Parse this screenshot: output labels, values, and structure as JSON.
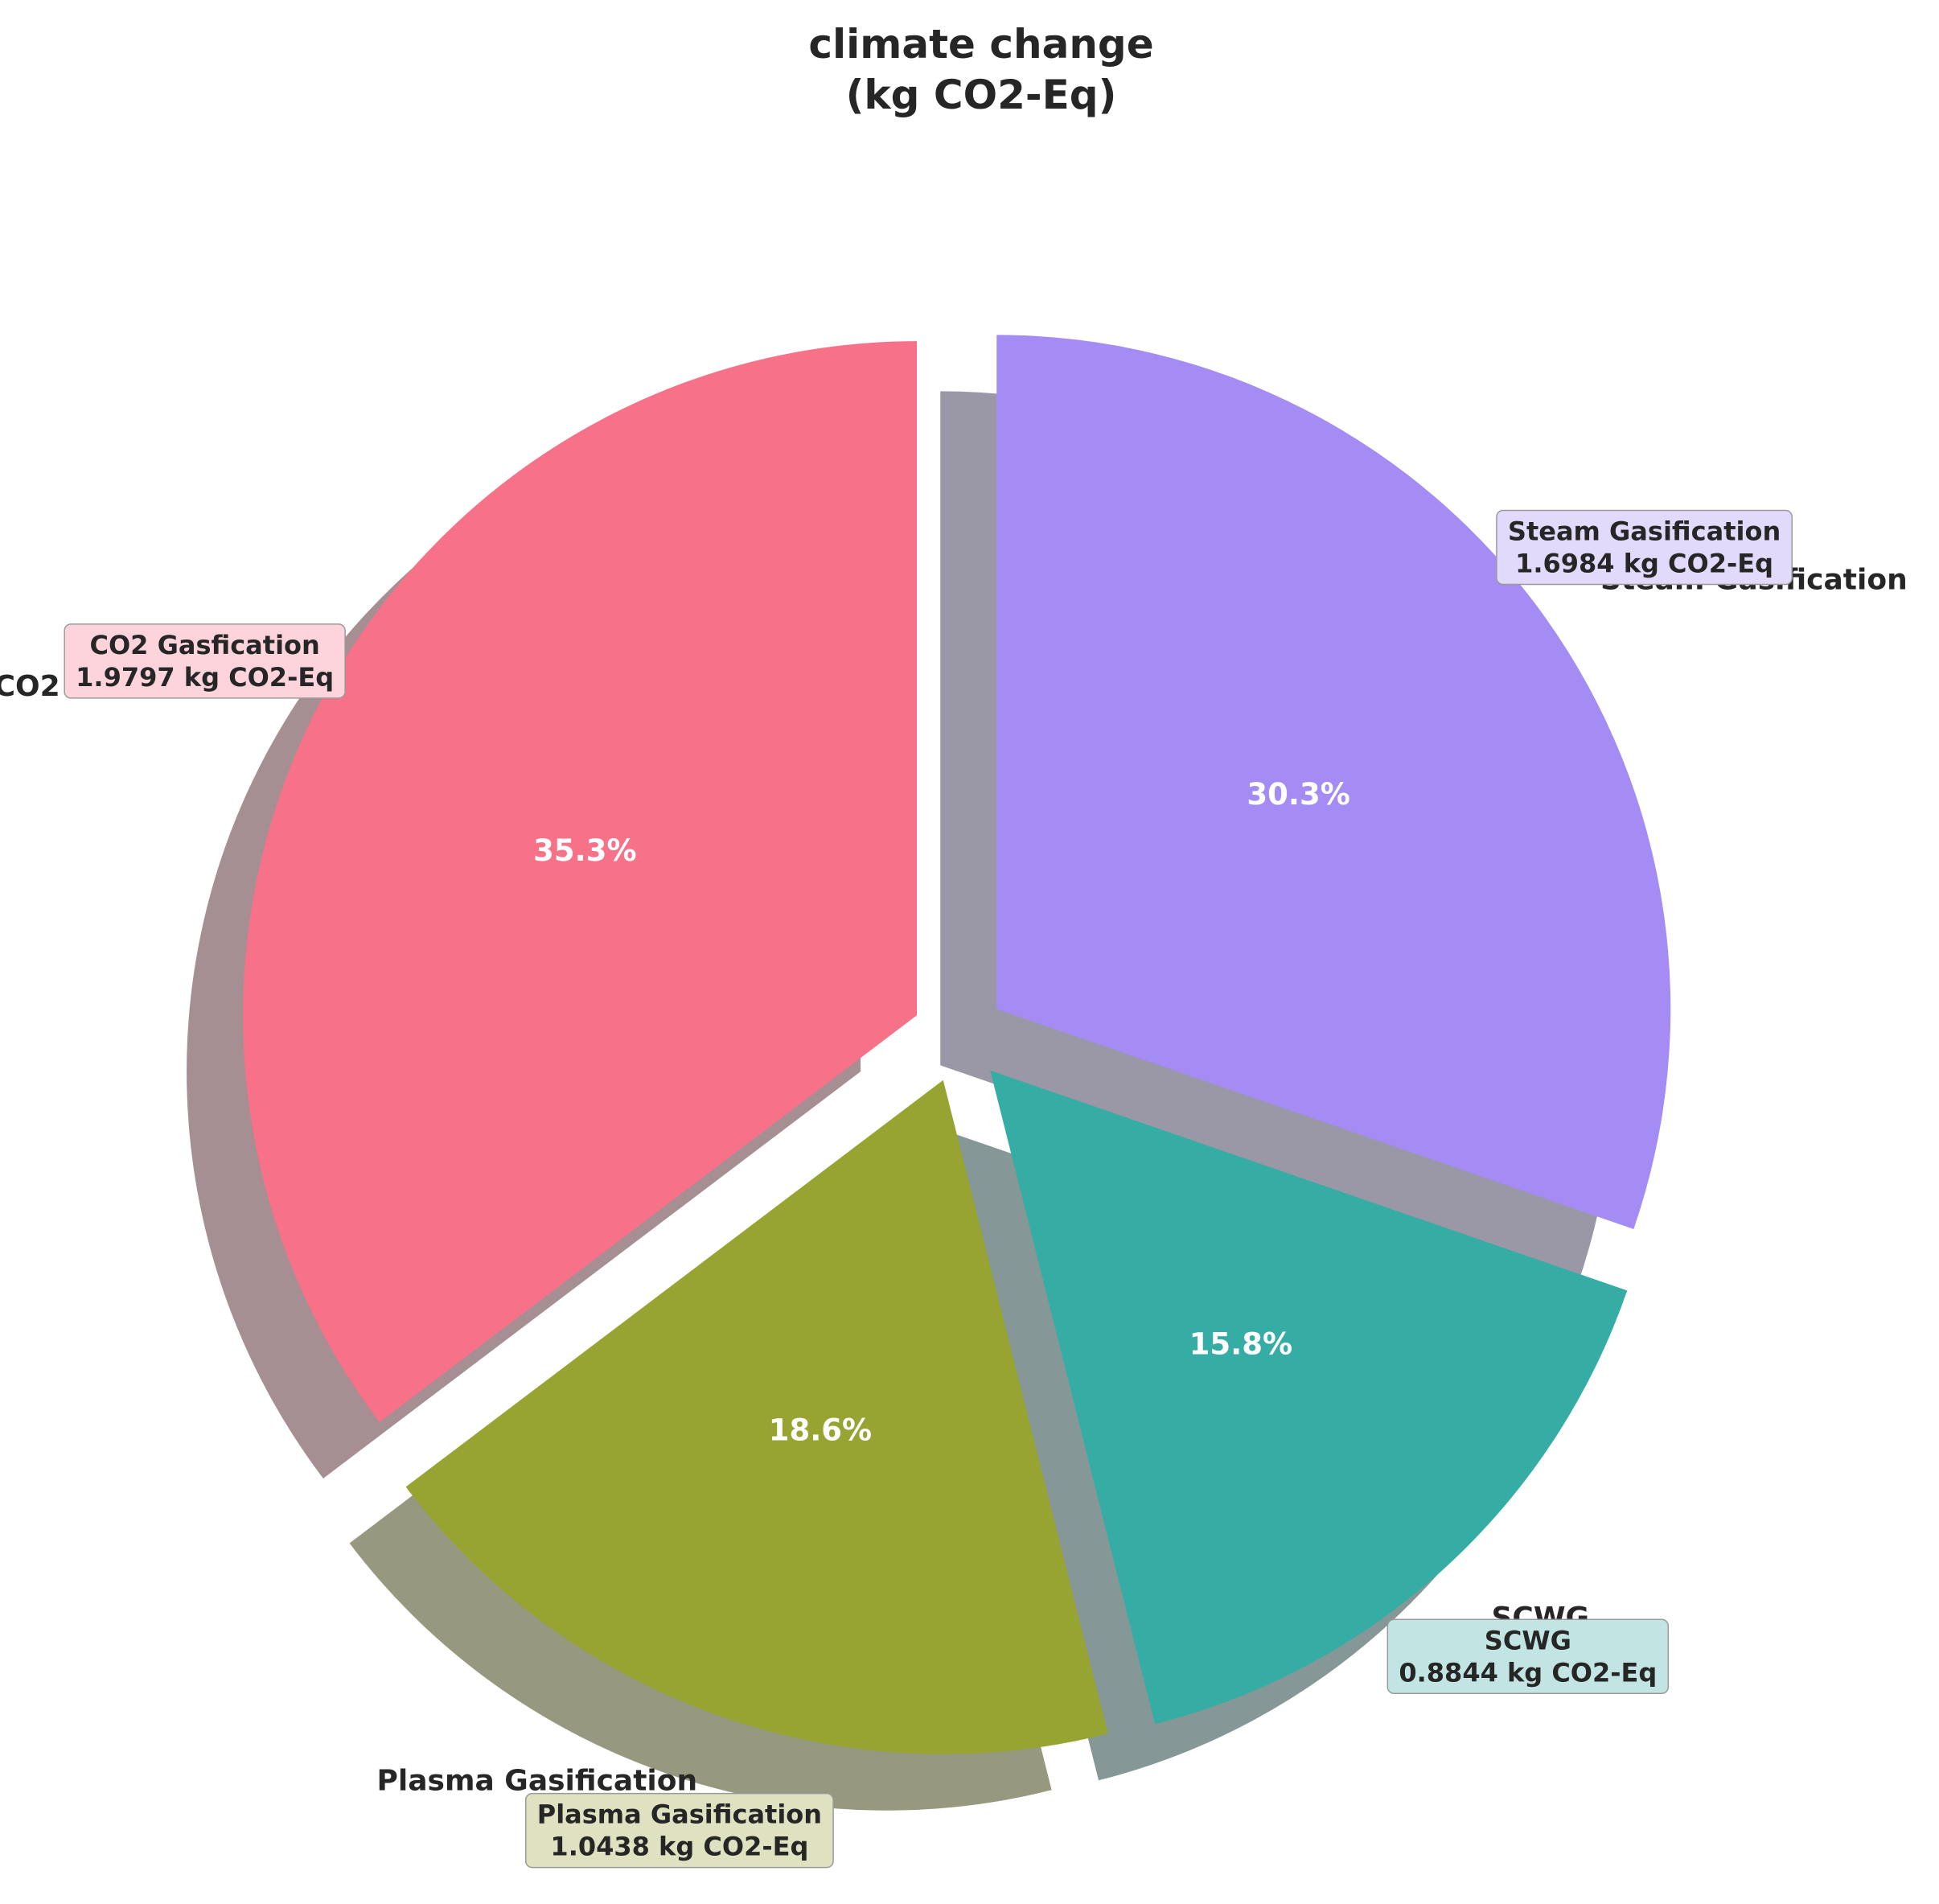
{
  "chart_data": {
    "type": "pie",
    "title_lines": [
      "climate change",
      "(kg CO2-Eq)"
    ],
    "unit": "kg CO2-Eq",
    "categories": [
      "CO2 Gasfication",
      "Plasma Gasification",
      "SCWG",
      "Steam Gasification"
    ],
    "values": [
      1.9797,
      1.0438,
      0.8844,
      1.6984
    ],
    "percent_labels": [
      "35.3%",
      "18.6%",
      "15.8%",
      "30.3%"
    ],
    "value_labels": [
      "1.9797 kg CO2-Eq",
      "1.0438 kg CO2-Eq",
      "0.8844 kg CO2-Eq",
      "1.6984 kg CO2-Eq"
    ],
    "colors": [
      "#f77189",
      "#97a431",
      "#36ada4",
      "#a48cf4"
    ],
    "box_colors": [
      "#fdd4db",
      "#dfe1c0",
      "#c2e5e3",
      "#e2dafb"
    ],
    "shadow": true,
    "exploded": true,
    "start_angle_deg": 90,
    "direction": "counterclockwise"
  }
}
